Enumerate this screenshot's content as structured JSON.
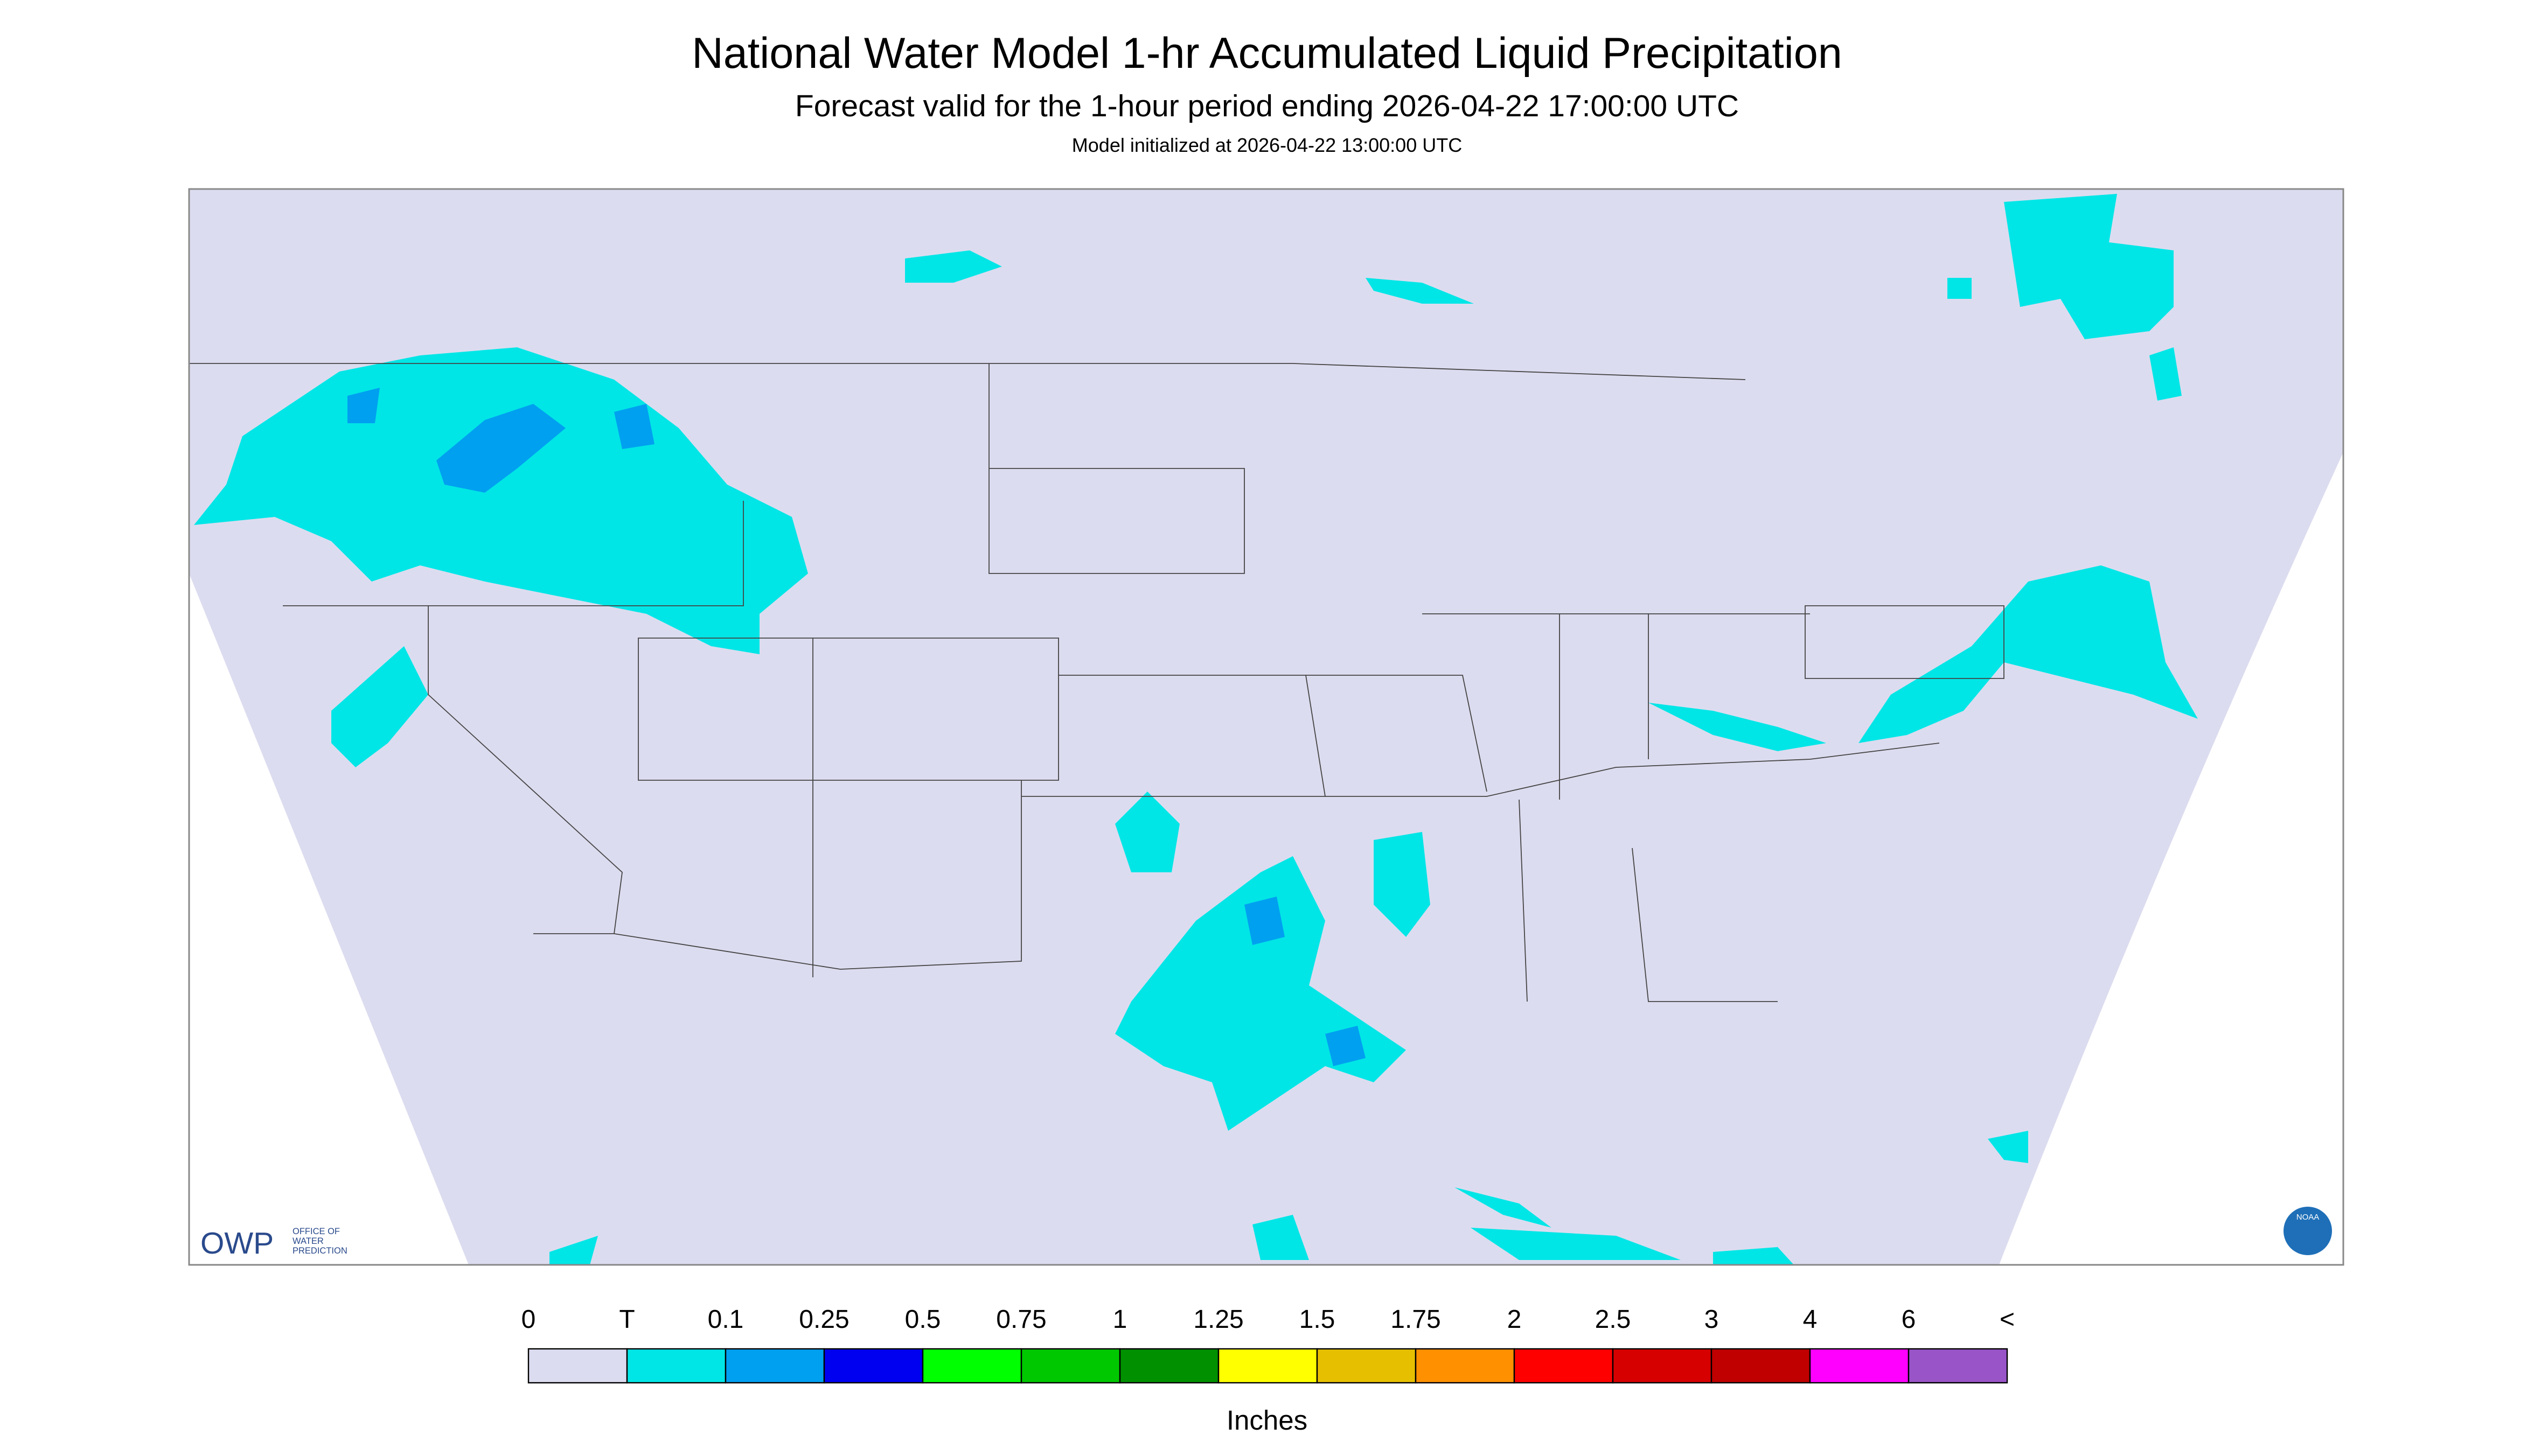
{
  "header": {
    "title": "National Water Model 1-hr Accumulated Liquid Precipitation",
    "subtitle": "Forecast valid for the 1-hour period ending 2026-04-22 17:00:00 UTC",
    "init": "Model initialized at 2026-04-22 13:00:00 UTC"
  },
  "logos": {
    "owp": "OWP",
    "owp_text": [
      "OFFICE OF",
      "WATER",
      "PREDICTION"
    ],
    "noaa": "NOAA"
  },
  "legend": {
    "labels": [
      "0",
      "T",
      "0.1",
      "0.25",
      "0.5",
      "0.75",
      "1",
      "1.25",
      "1.5",
      "1.75",
      "2",
      "2.5",
      "3",
      "4",
      "6",
      "<"
    ],
    "colors": [
      "#dcdcf0",
      "#00e6e6",
      "#00a0f0",
      "#0000f0",
      "#00ff00",
      "#00c800",
      "#009000",
      "#ffff00",
      "#e6c000",
      "#ff9000",
      "#ff0000",
      "#d60000",
      "#c00000",
      "#ff00ff",
      "#9955c8"
    ],
    "unit": "Inches"
  }
}
